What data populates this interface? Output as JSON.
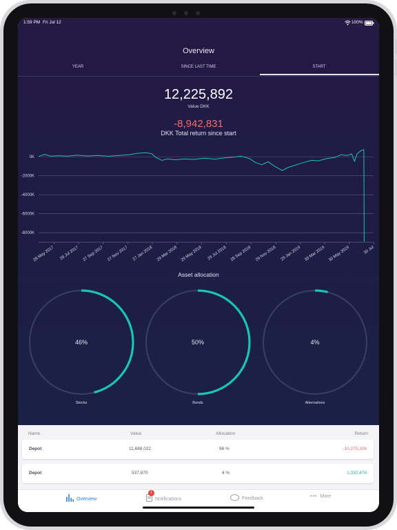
{
  "status": {
    "time": "1:59 PM",
    "date": "Fri Jul 12",
    "battery": "100%"
  },
  "header": {
    "title": "Overview"
  },
  "tabs": [
    {
      "label": "YEAR"
    },
    {
      "label": "SINCE LAST TIME"
    },
    {
      "label": "START"
    }
  ],
  "summary": {
    "value": "12,225,892",
    "value_label": "Value DKK",
    "return": "-8,942,831",
    "return_label": "DKK Total return since start"
  },
  "chart_data": {
    "type": "line",
    "y_ticks": [
      "0K",
      "-2000K",
      "-4000K",
      "-6000K",
      "-8000K"
    ],
    "ylim": [
      -9000,
      300
    ],
    "x_ticks": [
      "28 May 2017",
      "28 Jul 2017",
      "27 Sep 2017",
      "27 Nov 2017",
      "27 Jan 2018",
      "29 Mar 2018",
      "29 May 2018",
      "29 Jul 2018",
      "28 Sep 2018",
      "29 Nov 2018",
      "29 Jan 2019",
      "30 Mar 2019",
      "30 May 2019",
      "30 Jul"
    ],
    "series": [
      {
        "color": "#19c7b1",
        "points": [
          [
            "2017-04-20",
            30
          ],
          [
            "2017-05-05",
            260
          ],
          [
            "2017-05-20",
            60
          ],
          [
            "2017-06-10",
            110
          ],
          [
            "2017-07-01",
            60
          ],
          [
            "2017-07-25",
            160
          ],
          [
            "2017-08-20",
            80
          ],
          [
            "2017-09-15",
            130
          ],
          [
            "2017-10-10",
            50
          ],
          [
            "2017-11-05",
            140
          ],
          [
            "2017-12-01",
            220
          ],
          [
            "2017-12-20",
            360
          ],
          [
            "2018-01-10",
            420
          ],
          [
            "2018-01-25",
            330
          ],
          [
            "2018-02-05",
            -80
          ],
          [
            "2018-02-20",
            -380
          ],
          [
            "2018-03-05",
            -220
          ],
          [
            "2018-03-25",
            -320
          ],
          [
            "2018-04-15",
            -240
          ],
          [
            "2018-05-10",
            -280
          ],
          [
            "2018-06-05",
            -150
          ],
          [
            "2018-07-01",
            -250
          ],
          [
            "2018-07-25",
            -120
          ],
          [
            "2018-08-15",
            -40
          ],
          [
            "2018-09-05",
            60
          ],
          [
            "2018-09-25",
            -200
          ],
          [
            "2018-10-10",
            -620
          ],
          [
            "2018-10-25",
            -850
          ],
          [
            "2018-11-10",
            -520
          ],
          [
            "2018-11-25",
            -980
          ],
          [
            "2018-12-15",
            -1450
          ],
          [
            "2018-12-28",
            -1150
          ],
          [
            "2019-01-15",
            -900
          ],
          [
            "2019-02-05",
            -620
          ],
          [
            "2019-02-25",
            -380
          ],
          [
            "2019-03-15",
            -430
          ],
          [
            "2019-04-05",
            -180
          ],
          [
            "2019-04-25",
            -70
          ],
          [
            "2019-05-10",
            210
          ],
          [
            "2019-05-25",
            130
          ],
          [
            "2019-06-05",
            300
          ],
          [
            "2019-06-12",
            -500
          ],
          [
            "2019-06-18",
            300
          ],
          [
            "2019-06-28",
            650
          ],
          [
            "2019-07-05",
            750
          ],
          [
            "2019-07-06",
            -8950
          ]
        ]
      }
    ],
    "grid": true
  },
  "allocation": {
    "title": "Asset allocation",
    "items": [
      {
        "percent": "46%",
        "fraction": 0.46,
        "label": "Stocks"
      },
      {
        "percent": "50%",
        "fraction": 0.5,
        "label": "Bonds"
      },
      {
        "percent": "4%",
        "fraction": 0.04,
        "label": "Alternatives"
      }
    ],
    "accent": "#19c7b1",
    "track": "#3a3f63"
  },
  "holdings": {
    "headers": [
      "Name",
      "Value",
      "Allocation",
      "Return"
    ],
    "rows": [
      {
        "name": "Depot",
        "value": "11,688,022",
        "allocation": "96 %",
        "return": "-10,275,306",
        "return_color": "#ee6f6f"
      },
      {
        "name": "Depot",
        "value": "537,870",
        "allocation": "4 %",
        "return": "1,332,476",
        "return_color": "#1fb497"
      }
    ]
  },
  "tabbar": {
    "items": [
      {
        "label": "Overview",
        "icon": "bar-chart-icon"
      },
      {
        "label": "Notifications",
        "icon": "document-icon",
        "badge": "1"
      },
      {
        "label": "Feedback",
        "icon": "chat-bubble-icon"
      },
      {
        "label": "More",
        "icon": "ellipsis-icon"
      }
    ]
  }
}
